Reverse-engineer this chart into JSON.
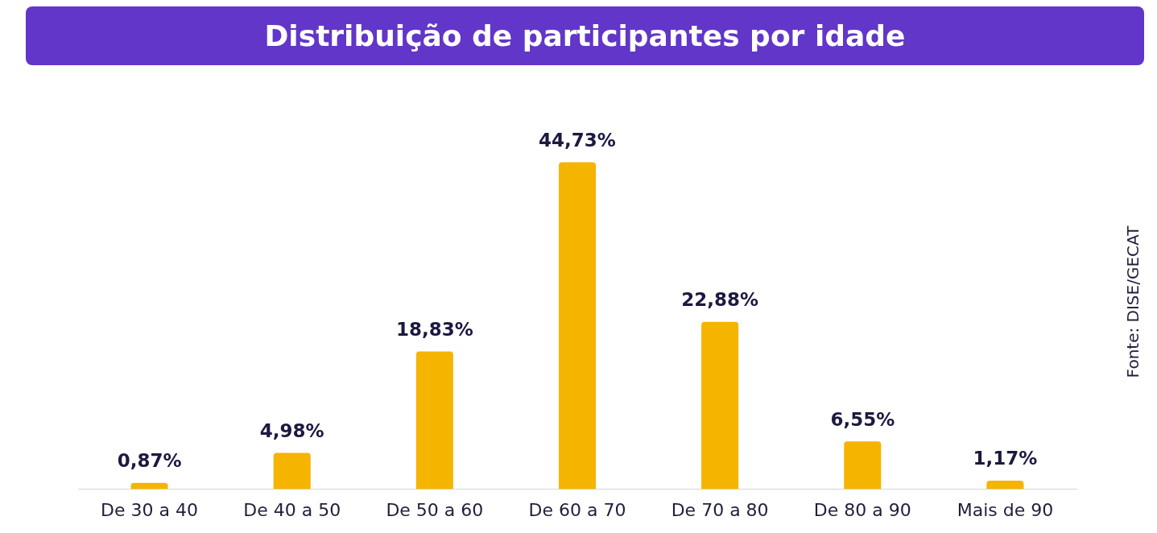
{
  "chart_data": {
    "type": "bar",
    "title": "Distribuição de participantes por idade",
    "categories": [
      "De 30 a 40",
      "De 40 a 50",
      "De 50 a 60",
      "De 60 a 70",
      "De 70 a 80",
      "De 80 a 90",
      "Mais de 90"
    ],
    "values": [
      0.87,
      4.98,
      18.83,
      44.73,
      22.88,
      6.55,
      1.17
    ],
    "color": "#f5b400",
    "data_labels": true,
    "value_labels": [
      "0,87%",
      "4,98%",
      "18,83%",
      "44,73%",
      "22,88%",
      "6,55%",
      "1,17%"
    ],
    "annotations": [
      "Fonte: DISE/GECAT"
    ],
    "grid": false,
    "legend": false,
    "tick_labels": "x"
  }
}
